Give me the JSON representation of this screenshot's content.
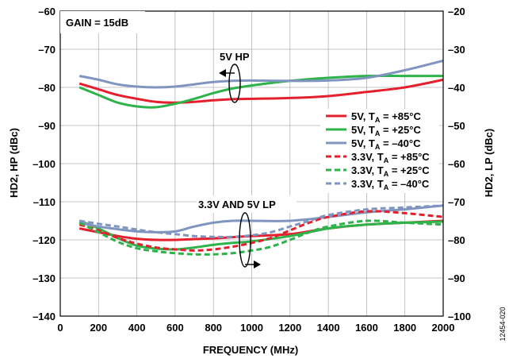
{
  "chart_data": {
    "type": "line",
    "xlabel": "FREQUENCY (MHz)",
    "ylabel": "HD2, HP (dBc)",
    "ylabel_right": "HD2, LP (dBc)",
    "xlim": [
      0,
      2000
    ],
    "ylim": [
      -140,
      -60
    ],
    "ylim_right": [
      -100,
      -20
    ],
    "x_ticks": [
      0,
      200,
      400,
      600,
      800,
      1000,
      1200,
      1400,
      1600,
      1800,
      2000
    ],
    "y_ticks": [
      -60,
      -70,
      -80,
      -90,
      -100,
      -110,
      -120,
      -130,
      -140
    ],
    "y_ticks_right": [
      -20,
      -30,
      -40,
      -50,
      -60,
      -70,
      -80,
      -90,
      -100
    ],
    "grid": true,
    "legend_position": "right",
    "annotations": {
      "gain": "GAIN = 15dB",
      "hp_group": "5V HP",
      "lp_group": "3.3V AND 5V LP",
      "figure_code": "12454-020"
    },
    "colors": {
      "red": "#e4202e",
      "green": "#2db34a",
      "blue": "#1b75bb",
      "gray_blue": "#7f95c0"
    },
    "series": [
      {
        "label_main": "5V, T",
        "label_sub": "A",
        "label_rest": " = +85°C",
        "group": "HP",
        "axis": "left",
        "color": "#e4202e",
        "dash": false,
        "x": [
          100,
          200,
          300,
          400,
          500,
          600,
          700,
          800,
          900,
          1000,
          1200,
          1400,
          1600,
          1800,
          2000
        ],
        "y": [
          -79,
          -80.5,
          -82,
          -83,
          -83.8,
          -84,
          -83.8,
          -83.4,
          -83.1,
          -83,
          -82.8,
          -82.3,
          -81.2,
          -80,
          -78
        ]
      },
      {
        "label_main": "5V, T",
        "label_sub": "A",
        "label_rest": " = +25°C",
        "group": "HP",
        "axis": "left",
        "color": "#2db34a",
        "dash": false,
        "x": [
          100,
          200,
          300,
          400,
          500,
          600,
          700,
          800,
          900,
          1000,
          1200,
          1400,
          1600,
          1800,
          2000
        ],
        "y": [
          -80,
          -82,
          -84,
          -85,
          -85.2,
          -84.3,
          -83,
          -81.5,
          -80.3,
          -79.5,
          -78.3,
          -77.5,
          -77,
          -77,
          -77
        ]
      },
      {
        "label_main": "5V, T",
        "label_sub": "A",
        "label_rest": " = –40°C",
        "group": "HP",
        "axis": "left",
        "color": "#7f95c0",
        "dash": false,
        "x": [
          100,
          200,
          300,
          400,
          500,
          600,
          700,
          800,
          900,
          1000,
          1200,
          1400,
          1600,
          1800,
          2000
        ],
        "y": [
          -77,
          -78,
          -79.2,
          -79.8,
          -80,
          -79.8,
          -79.2,
          -78.6,
          -78.3,
          -78.2,
          -78.3,
          -78.2,
          -77.5,
          -75.5,
          -73
        ]
      },
      {
        "label_main": "3.3V, T",
        "label_sub": "A",
        "label_rest": " = +85°C",
        "group": "LP",
        "axis": "right",
        "color": "#e4202e",
        "dash": true,
        "x": [
          100,
          200,
          300,
          400,
          500,
          600,
          700,
          800,
          900,
          1000,
          1100,
          1200,
          1300,
          1400,
          1600,
          1800,
          2000
        ],
        "y": [
          -76,
          -77.5,
          -79.5,
          -81,
          -82,
          -82.5,
          -82.8,
          -82.5,
          -81.8,
          -80.8,
          -79.5,
          -77.5,
          -75.5,
          -74,
          -72.5,
          -73,
          -74
        ]
      },
      {
        "label_main": "3.3V, T",
        "label_sub": "A",
        "label_rest": " = +25°C",
        "group": "LP",
        "axis": "right",
        "color": "#2db34a",
        "dash": true,
        "x": [
          100,
          200,
          300,
          400,
          500,
          600,
          700,
          800,
          900,
          1000,
          1100,
          1200,
          1300,
          1400,
          1600,
          1800,
          2000
        ],
        "y": [
          -75.5,
          -78,
          -80.5,
          -82.2,
          -83,
          -83.5,
          -83.8,
          -83.8,
          -83.5,
          -82.8,
          -81.8,
          -80,
          -78,
          -76.5,
          -75,
          -75.5,
          -76
        ]
      },
      {
        "label_main": "3.3V, T",
        "label_sub": "A",
        "label_rest": " = –40°C",
        "group": "LP",
        "axis": "right",
        "color": "#7f95c0",
        "dash": true,
        "x": [
          100,
          200,
          300,
          400,
          500,
          600,
          700,
          800,
          900,
          1000,
          1100,
          1200,
          1300,
          1400,
          1600,
          1800,
          2000
        ],
        "y": [
          -75,
          -75.8,
          -76.5,
          -77.3,
          -78,
          -78.5,
          -79,
          -79.2,
          -79.2,
          -78.8,
          -78,
          -76.5,
          -75,
          -73.5,
          -72,
          -71.5,
          -71
        ]
      },
      {
        "label_main": "",
        "label_sub": "",
        "label_rest": "",
        "group": "LP",
        "axis": "right",
        "color": "#e4202e",
        "dash": false,
        "legend": false,
        "x": [
          100,
          200,
          300,
          400,
          500,
          600,
          700,
          800,
          900,
          1000,
          1200,
          1400,
          1600,
          1800,
          2000
        ],
        "y": [
          -77,
          -78,
          -79,
          -79.7,
          -80,
          -80,
          -79.8,
          -79.6,
          -79.3,
          -79,
          -78.5,
          -77,
          -76,
          -75.5,
          -75
        ]
      },
      {
        "label_main": "",
        "label_sub": "",
        "label_rest": "",
        "group": "LP",
        "axis": "right",
        "color": "#2db34a",
        "dash": false,
        "legend": false,
        "x": [
          100,
          200,
          300,
          400,
          500,
          600,
          700,
          800,
          900,
          1000,
          1200,
          1400,
          1600,
          1800,
          2000
        ],
        "y": [
          -75,
          -77,
          -79.5,
          -81.5,
          -82.3,
          -82.5,
          -82,
          -81.3,
          -80.8,
          -80.4,
          -79,
          -77,
          -76,
          -75.5,
          -75.2
        ]
      },
      {
        "label_main": "",
        "label_sub": "",
        "label_rest": "",
        "group": "LP",
        "axis": "right",
        "color": "#7f95c0",
        "dash": false,
        "legend": false,
        "x": [
          100,
          200,
          300,
          400,
          500,
          600,
          700,
          800,
          900,
          1000,
          1200,
          1400,
          1600,
          1800,
          2000
        ],
        "y": [
          -75.5,
          -76.5,
          -77.2,
          -77.8,
          -78,
          -77.8,
          -76.5,
          -75.5,
          -75,
          -75,
          -75,
          -74,
          -72.8,
          -72,
          -71
        ]
      }
    ]
  }
}
